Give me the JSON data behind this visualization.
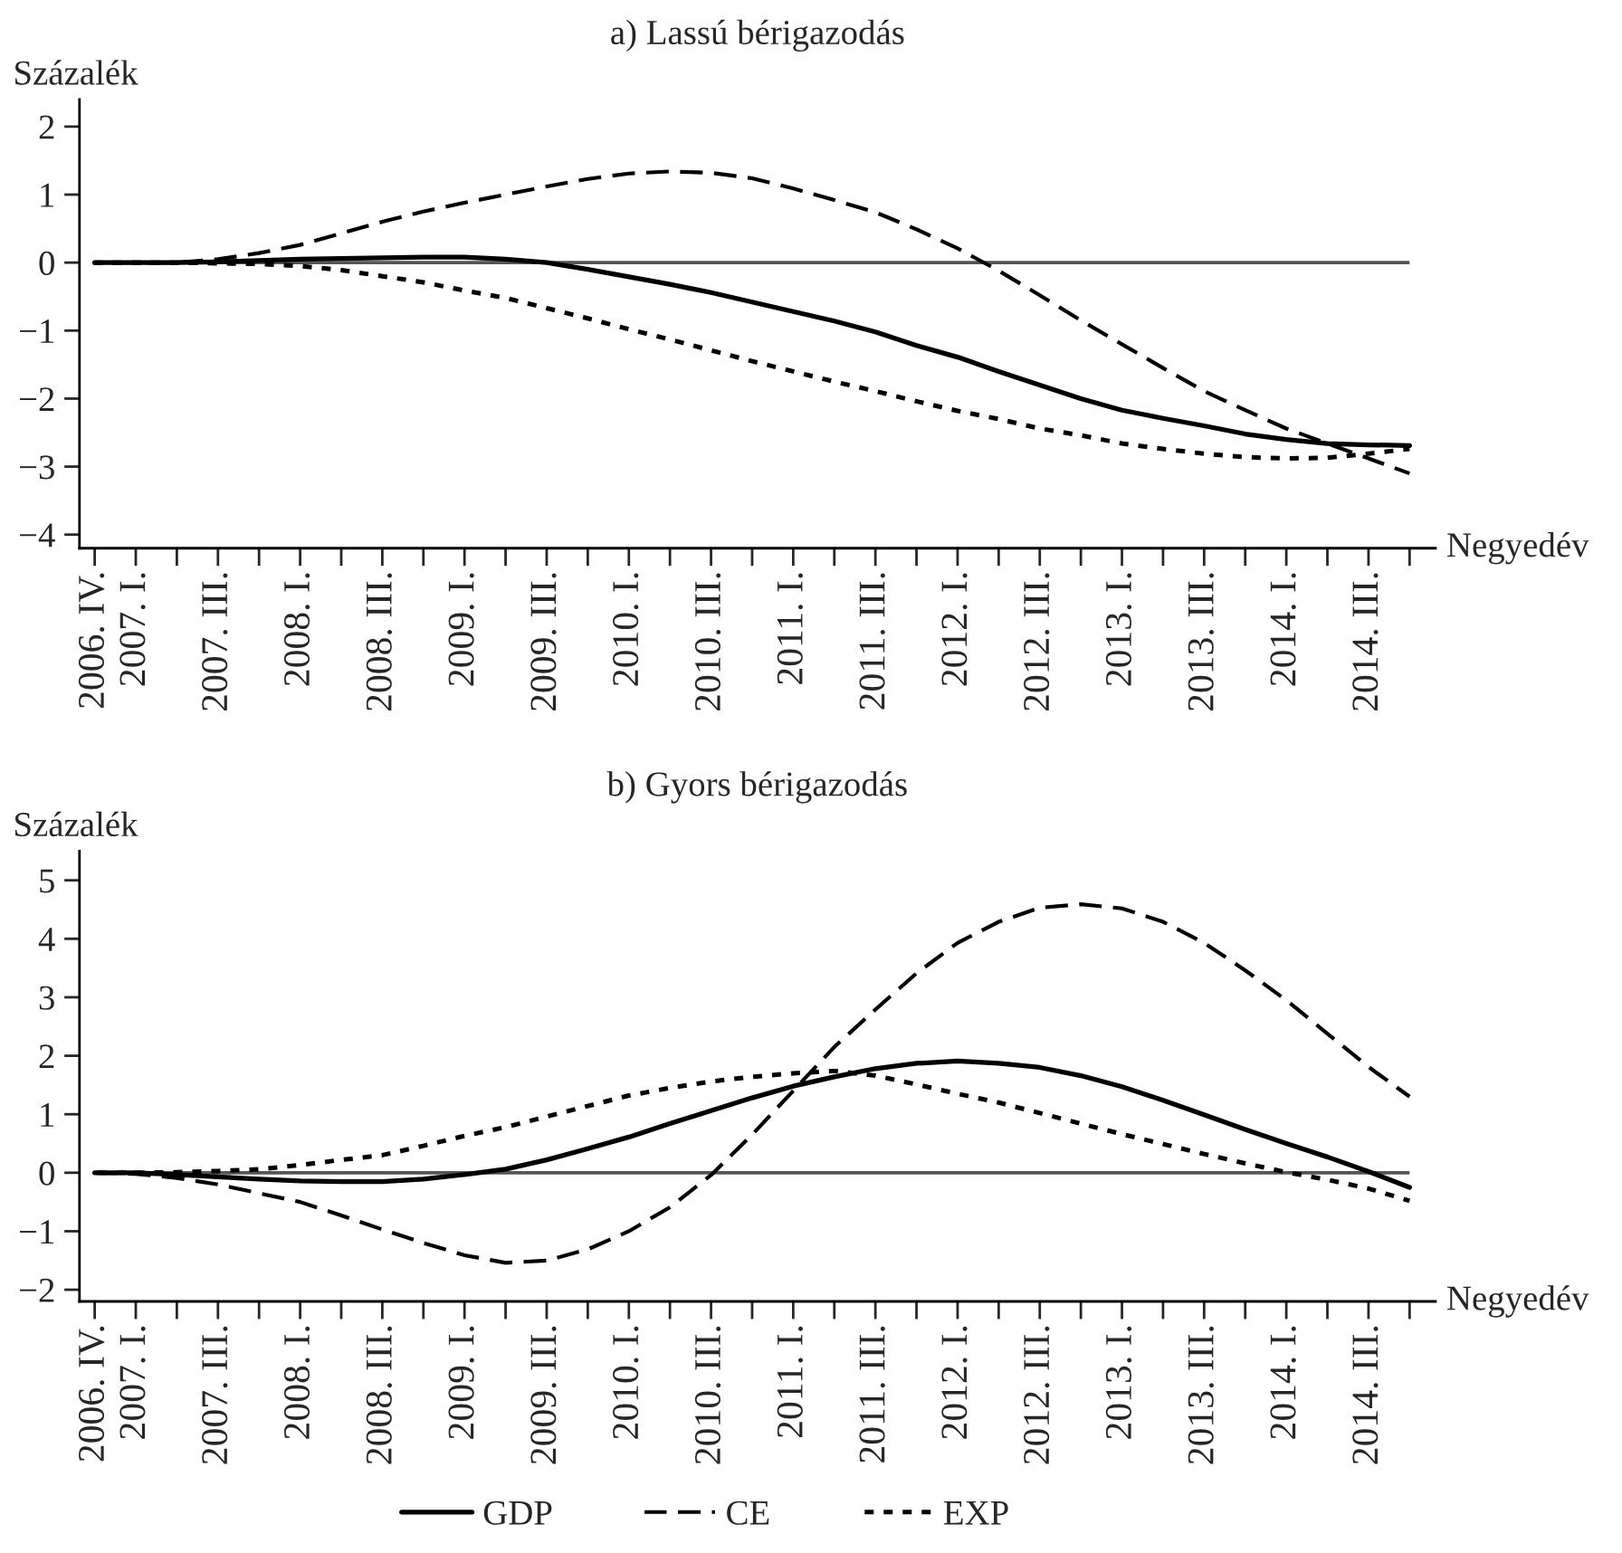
{
  "chart_data": [
    {
      "type": "line",
      "title": "a) Lassú bérigazodás",
      "ylabel": "Százalék",
      "xlabel": "Negyedév",
      "categories": [
        "2006. IV.",
        "2007. I.",
        null,
        "2007. III.",
        null,
        "2008. I.",
        null,
        "2008. III.",
        null,
        "2009. I.",
        null,
        "2009. III.",
        null,
        "2010. I.",
        null,
        "2010. III.",
        null,
        "2011. I.",
        null,
        "2011. III.",
        null,
        "2012. I.",
        null,
        "2012. III.",
        null,
        "2013. I.",
        null,
        "2013. III.",
        null,
        "2014. I.",
        null,
        "2014. III.",
        null
      ],
      "series": [
        {
          "color": "#000000",
          "line_style": "solid",
          "values": [
            0,
            0,
            0,
            0.01,
            0.03,
            0.05,
            0.06,
            0.07,
            0.08,
            0.08,
            0.05,
            0,
            -0.1,
            -0.21,
            -0.32,
            -0.44,
            -0.58,
            -0.72,
            -0.86,
            -1.02,
            -1.22,
            -1.39,
            -1.6,
            -1.8,
            -2.0,
            -2.17,
            -2.29,
            -2.4,
            -2.52,
            -2.6,
            -2.66,
            -2.68,
            -2.69
          ]
        },
        {
          "color": "#000000",
          "line_style": "dashed",
          "values": [
            0,
            0,
            0,
            0.05,
            0.14,
            0.26,
            0.43,
            0.6,
            0.75,
            0.88,
            1.0,
            1.12,
            1.23,
            1.31,
            1.34,
            1.32,
            1.24,
            1.09,
            0.92,
            0.74,
            0.49,
            0.21,
            -0.12,
            -0.48,
            -0.85,
            -1.2,
            -1.55,
            -1.89,
            -2.17,
            -2.44,
            -2.66,
            -2.88,
            -3.1
          ]
        },
        {
          "color": "#000000",
          "line_style": "dotted",
          "values": [
            0,
            0,
            0,
            -0.01,
            -0.02,
            -0.05,
            -0.11,
            -0.2,
            -0.29,
            -0.41,
            -0.52,
            -0.67,
            -0.82,
            -0.98,
            -1.13,
            -1.29,
            -1.45,
            -1.6,
            -1.75,
            -1.89,
            -2.04,
            -2.18,
            -2.3,
            -2.44,
            -2.54,
            -2.66,
            -2.74,
            -2.81,
            -2.86,
            -2.88,
            -2.87,
            -2.81,
            -2.74
          ]
        }
      ],
      "ylim": [
        -4.2,
        2.4
      ],
      "yticks": [
        {
          "value": -4,
          "label": "−4"
        },
        {
          "value": -3,
          "label": "−3"
        },
        {
          "value": -2,
          "label": "−2"
        },
        {
          "value": -1,
          "label": "−1"
        },
        0,
        1,
        2
      ],
      "ref_lines": [
        {
          "axis": "y",
          "value": 0,
          "color": "#555555"
        }
      ]
    },
    {
      "type": "line",
      "title": "b) Gyors bérigazodás",
      "ylabel": "Százalék",
      "xlabel": "Negyedév",
      "categories": [
        "2006. IV.",
        "2007. I.",
        null,
        "2007. III.",
        null,
        "2008. I.",
        null,
        "2008. III.",
        null,
        "2009. I.",
        null,
        "2009. III.",
        null,
        "2010. I.",
        null,
        "2010. III.",
        null,
        "2011. I.",
        null,
        "2011. III.",
        null,
        "2012. I.",
        null,
        "2012. III.",
        null,
        "2013. I.",
        null,
        "2013. III.",
        null,
        "2014. I.",
        null,
        "2014. III.",
        null
      ],
      "series": [
        {
          "name": "GDP",
          "color": "#000000",
          "line_style": "solid",
          "values": [
            0,
            0,
            -0.03,
            -0.07,
            -0.11,
            -0.14,
            -0.15,
            -0.15,
            -0.11,
            -0.03,
            0.06,
            0.22,
            0.41,
            0.61,
            0.84,
            1.06,
            1.28,
            1.48,
            1.64,
            1.78,
            1.87,
            1.91,
            1.87,
            1.8,
            1.66,
            1.47,
            1.24,
            0.99,
            0.74,
            0.5,
            0.27,
            0.02,
            -0.25
          ]
        },
        {
          "name": "CE",
          "color": "#000000",
          "line_style": "dashed",
          "values": [
            0,
            -0.02,
            -0.09,
            -0.2,
            -0.35,
            -0.5,
            -0.73,
            -0.97,
            -1.2,
            -1.41,
            -1.54,
            -1.5,
            -1.31,
            -1.0,
            -0.59,
            -0.04,
            0.65,
            1.4,
            2.15,
            2.79,
            3.41,
            3.93,
            4.29,
            4.53,
            4.59,
            4.52,
            4.29,
            3.93,
            3.46,
            2.95,
            2.38,
            1.81,
            1.3
          ]
        },
        {
          "name": "EXP",
          "color": "#000000",
          "line_style": "dotted",
          "values": [
            0,
            0,
            0.01,
            0.03,
            0.06,
            0.13,
            0.22,
            0.3,
            0.46,
            0.63,
            0.78,
            0.96,
            1.14,
            1.32,
            1.45,
            1.56,
            1.64,
            1.7,
            1.74,
            1.66,
            1.51,
            1.35,
            1.2,
            1.02,
            0.84,
            0.66,
            0.49,
            0.32,
            0.16,
            0.01,
            -0.12,
            -0.27,
            -0.48
          ]
        }
      ],
      "ylim": [
        -2.2,
        5.5
      ],
      "yticks": [
        {
          "value": -2,
          "label": "−2"
        },
        {
          "value": -1,
          "label": "−1"
        },
        0,
        1,
        2,
        3,
        4,
        5
      ],
      "ref_lines": [
        {
          "axis": "y",
          "value": 0,
          "color": "#555555"
        }
      ],
      "legend": "bottom"
    }
  ]
}
